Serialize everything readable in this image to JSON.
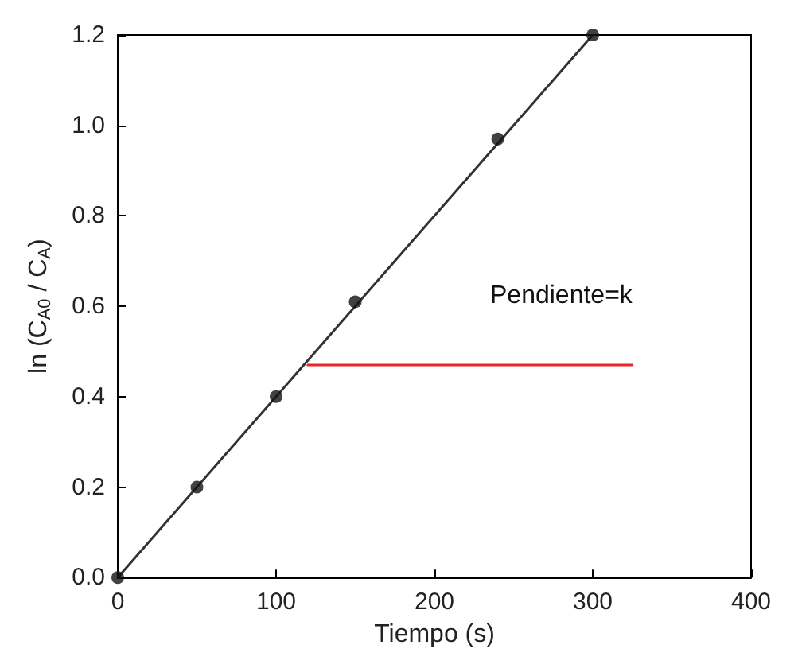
{
  "chart_data": {
    "type": "scatter",
    "xlabel": "Tiempo (s)",
    "ylabel": "ln (C$_{A0}$ / C$_{A}$)",
    "xlim": [
      0,
      400
    ],
    "xticks": [
      0,
      100,
      200,
      300,
      400
    ],
    "ylim": [
      0,
      1.2
    ],
    "yticks": [
      {
        "value": 0,
        "label": "0.0"
      },
      {
        "value": 0.2,
        "label": "0.2"
      },
      {
        "value": 0.4,
        "label": "0.4"
      },
      {
        "value": 0.6,
        "label": "0.6"
      },
      {
        "value": 0.8,
        "label": "0.8"
      },
      {
        "value": 1.0,
        "label": "1.0"
      },
      {
        "value": 1.2,
        "label": "1.2"
      }
    ],
    "grid": false,
    "series": [
      {
        "color": "#111111",
        "marker": "circle",
        "x": [
          0,
          50,
          100,
          150,
          240,
          300
        ],
        "values": [
          0,
          0.2,
          0.4,
          0.61,
          0.97,
          1.2
        ]
      },
      {
        "type": "line",
        "color": "#333333",
        "marker": "none",
        "line_style": "solid",
        "x": [
          0,
          300
        ],
        "values": [
          0,
          1.2
        ]
      },
      {
        "type": "line",
        "color": "#e8262a",
        "marker": "none",
        "line_style": "solid",
        "x": [
          120,
          325
        ],
        "values": [
          0.47,
          0.47
        ]
      }
    ],
    "annotations": [
      "Pendiente=k"
    ]
  }
}
